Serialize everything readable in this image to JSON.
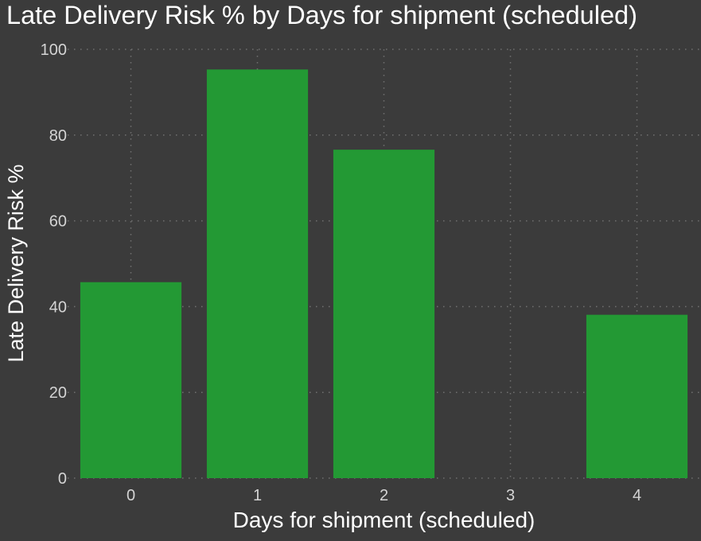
{
  "colors": {
    "background": "#3b3b3b",
    "bar": "#239934",
    "grid": "#707070",
    "title_text": "#ffffff",
    "tick_text": "#d4d4d4"
  },
  "chart_data": {
    "type": "bar",
    "title": "Late Delivery Risk % by Days for shipment (scheduled)",
    "xlabel": "Days for shipment (scheduled)",
    "ylabel": "Late Delivery Risk %",
    "x": [
      0,
      1,
      2,
      4
    ],
    "values": [
      45.7,
      95.3,
      76.6,
      38.1
    ],
    "xticks": [
      0,
      1,
      2,
      3,
      4
    ],
    "xlim": [
      -0.5,
      4.5
    ],
    "yticks": [
      0,
      20,
      40,
      60,
      80,
      100
    ],
    "ylim": [
      0,
      100
    ],
    "grid": true
  }
}
